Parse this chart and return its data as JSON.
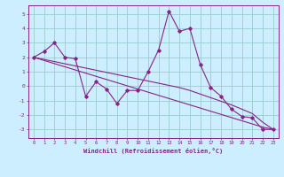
{
  "xlabel": "Windchill (Refroidissement éolien,°C)",
  "background_color": "#cceeff",
  "line_color": "#882288",
  "grid_color": "#99cccc",
  "x_data": [
    0,
    1,
    2,
    3,
    4,
    5,
    6,
    7,
    8,
    9,
    10,
    11,
    12,
    13,
    14,
    15,
    16,
    17,
    18,
    19,
    20,
    21,
    22,
    23
  ],
  "y_main": [
    2.0,
    2.4,
    3.0,
    2.0,
    1.9,
    -0.7,
    0.3,
    -0.2,
    -1.2,
    -0.3,
    -0.3,
    1.0,
    2.5,
    5.2,
    3.8,
    4.0,
    1.5,
    -0.1,
    -0.7,
    -1.6,
    -2.1,
    -2.2,
    -3.0,
    -3.0
  ],
  "y_line1": [
    2.0,
    1.78,
    1.56,
    1.34,
    1.12,
    0.9,
    0.68,
    0.46,
    0.24,
    0.02,
    -0.2,
    -0.42,
    -0.64,
    -0.86,
    -1.08,
    -1.3,
    -1.52,
    -1.74,
    -1.96,
    -2.18,
    -2.4,
    -2.62,
    -2.84,
    -3.0
  ],
  "y_line2": [
    2.0,
    1.85,
    1.7,
    1.55,
    1.4,
    1.25,
    1.1,
    0.95,
    0.8,
    0.65,
    0.5,
    0.35,
    0.2,
    0.05,
    -0.1,
    -0.3,
    -0.55,
    -0.8,
    -1.05,
    -1.3,
    -1.6,
    -1.9,
    -2.5,
    -3.0
  ],
  "xlim": [
    -0.5,
    23.5
  ],
  "ylim": [
    -3.6,
    5.6
  ],
  "yticks": [
    -3,
    -2,
    -1,
    0,
    1,
    2,
    3,
    4,
    5
  ],
  "xticks": [
    0,
    1,
    2,
    3,
    4,
    5,
    6,
    7,
    8,
    9,
    10,
    11,
    12,
    13,
    14,
    15,
    16,
    17,
    18,
    19,
    20,
    21,
    22,
    23
  ]
}
